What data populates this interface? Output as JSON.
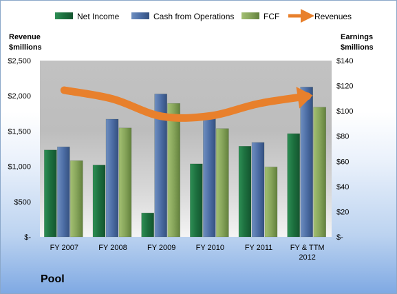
{
  "company": "Pool",
  "chart_data": {
    "type": "bar",
    "categories": [
      "FY 2007",
      "FY 2008",
      "FY 2009",
      "FY 2010",
      "FY 2011",
      "FY & TTM|2012"
    ],
    "series": [
      {
        "name": "Net Income",
        "axis": "right",
        "color": "#217a45",
        "values": [
          69,
          57,
          19,
          58,
          72,
          82
        ]
      },
      {
        "name": "Cash from Operations",
        "axis": "right",
        "color": "#4a6fa5",
        "values": [
          71.5,
          93.5,
          113.5,
          94,
          75,
          119
        ]
      },
      {
        "name": "FCF",
        "axis": "right",
        "color": "#86a85a",
        "values": [
          60.5,
          86.5,
          106,
          86,
          55.5,
          103
        ]
      },
      {
        "name": "Revenues",
        "axis": "left",
        "type": "line",
        "color": "#e8802c",
        "values": [
          2080,
          1955,
          1710,
          1715,
          1890,
          1995
        ]
      }
    ],
    "y_left": {
      "label": "Revenue|$millions",
      "ylim": [
        0,
        2500
      ],
      "ticks": [
        "$-",
        "$500",
        "$1,000",
        "$1,500",
        "$2,000",
        "$2,500"
      ]
    },
    "y_right": {
      "label": "Earnings|$millions",
      "ylim": [
        0,
        140
      ],
      "ticks": [
        "$-",
        "$20",
        "$40",
        "$60",
        "$80",
        "$100",
        "$120",
        "$140"
      ]
    },
    "legend_position": "top",
    "grid": false
  }
}
